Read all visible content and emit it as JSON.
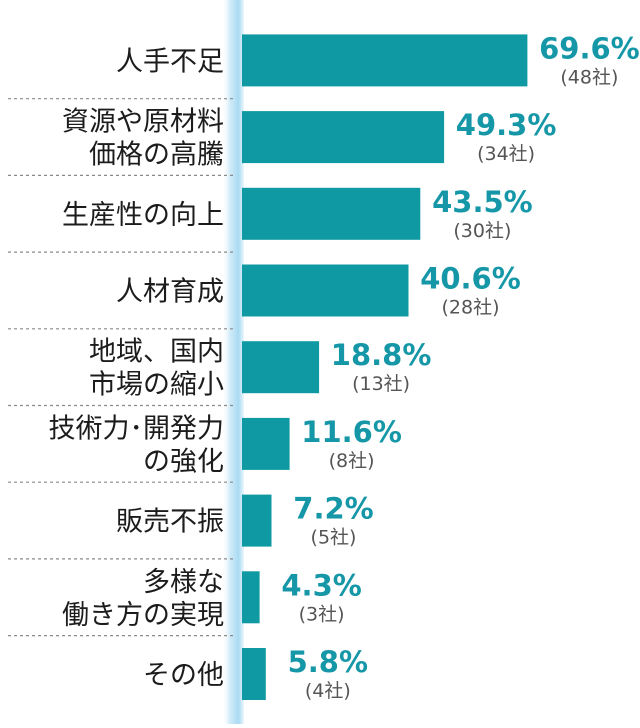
{
  "chart_data": {
    "type": "bar",
    "orientation": "horizontal",
    "value_format": "percent",
    "categories": [
      [
        "人手不足"
      ],
      [
        "資源や原材料",
        "価格の高騰"
      ],
      [
        "生産性の向上"
      ],
      [
        "人材育成"
      ],
      [
        "地域、国内",
        "市場の縮小"
      ],
      [
        "技術力･開発力",
        "の強化"
      ],
      [
        "販売不振"
      ],
      [
        "多様な",
        "働き方の実現"
      ],
      [
        "その他"
      ]
    ],
    "values": [
      69.6,
      49.3,
      43.5,
      40.6,
      18.8,
      11.6,
      7.2,
      4.3,
      5.8
    ],
    "value_labels": [
      "69.6%",
      "49.3%",
      "43.5%",
      "40.6%",
      "18.8%",
      "11.6%",
      "7.2%",
      "4.3%",
      "5.8%"
    ],
    "count_labels": [
      "(48社)",
      "(34社)",
      "(30社)",
      "(28社)",
      "(13社)",
      "(8社)",
      "(5社)",
      "(3社)",
      "(4社)"
    ],
    "xlim": [
      0,
      100
    ],
    "grid": false,
    "colors": {
      "bar": "#0f9aa3",
      "value_text": "#1597a7",
      "axis_glow": "#bfe4f5",
      "separator": "#8a8a8a"
    }
  }
}
